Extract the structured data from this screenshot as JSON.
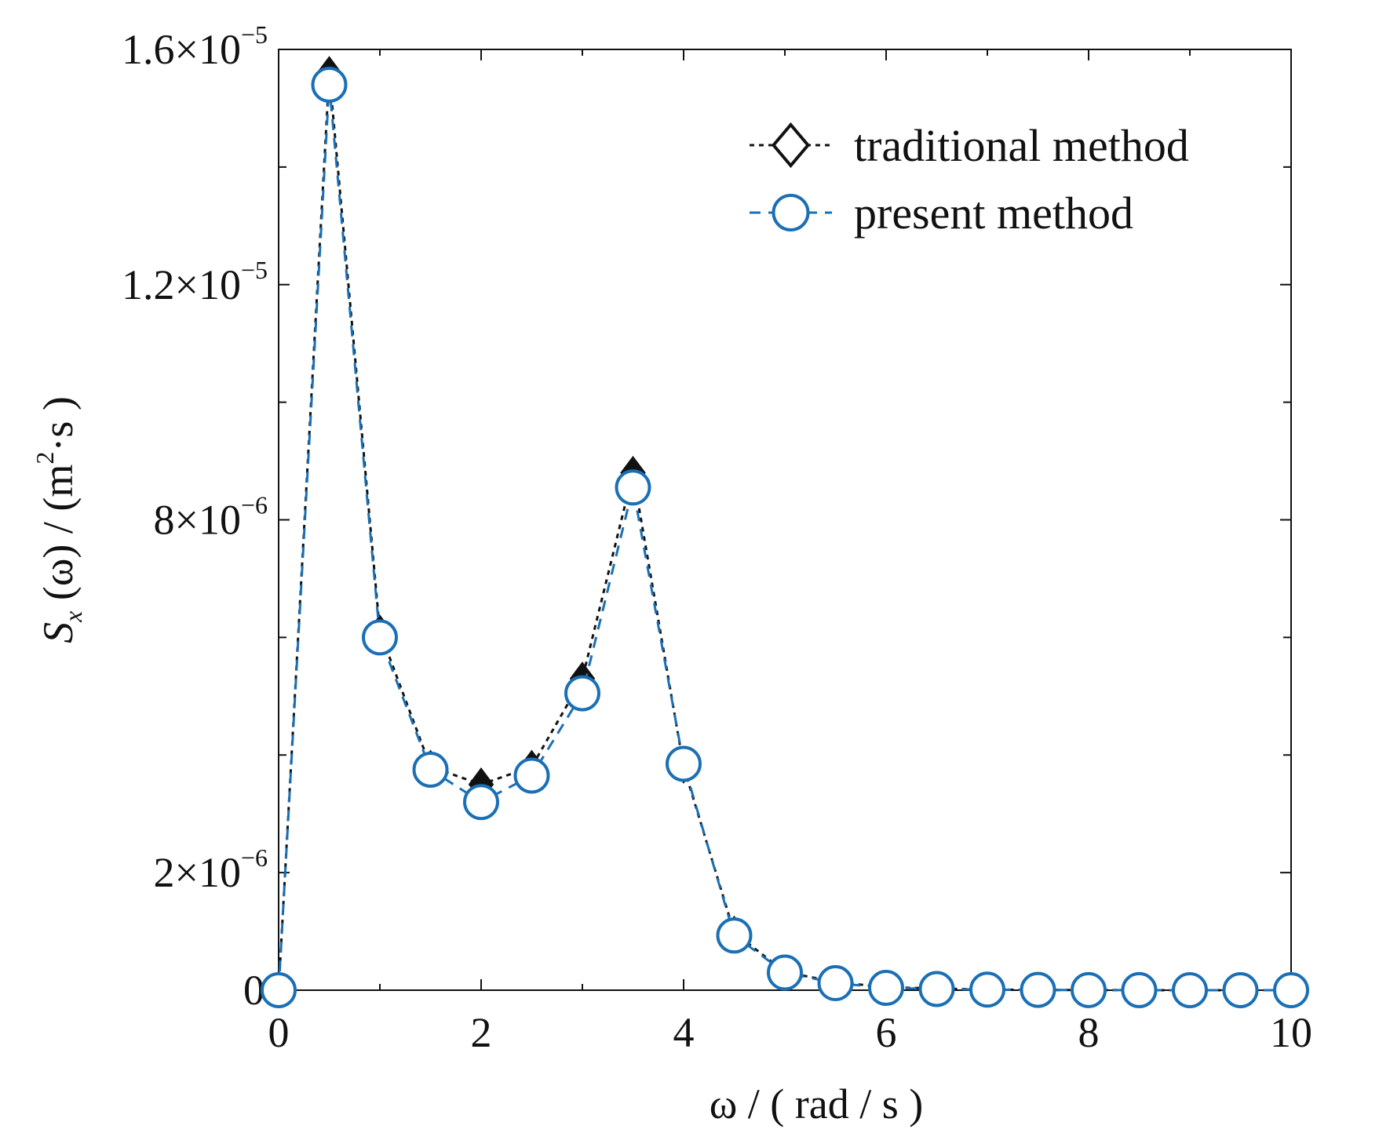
{
  "chart_data": {
    "type": "line",
    "xlabel": "ω / ( rad / s )",
    "ylabel_parts": {
      "symbol": "S",
      "subscript": "x",
      "arg": " (ω) / (m",
      "power": "2",
      "tail": "·s )"
    },
    "xlim": [
      0,
      10
    ],
    "ylim": [
      0,
      1.6e-05
    ],
    "x_ticks": [
      0,
      2,
      4,
      6,
      8,
      10
    ],
    "y_ticks": [
      {
        "value": 0,
        "mantissa": "0",
        "exponent": ""
      },
      {
        "value": 2e-06,
        "mantissa": "2×10",
        "exponent": "−6"
      },
      {
        "value": 8e-06,
        "mantissa": "8×10",
        "exponent": "−6"
      },
      {
        "value": 1.2e-05,
        "mantissa": "1.2×10",
        "exponent": "−5"
      },
      {
        "value": 1.6e-05,
        "mantissa": "1.6×10",
        "exponent": "−5"
      }
    ],
    "y_minor_ticks": [
      4e-06,
      6e-06,
      1e-05,
      1.4e-05
    ],
    "x_minor_ticks": [
      1,
      3,
      5,
      7,
      9
    ],
    "legend_position": "top-right",
    "x": [
      0,
      0.5,
      1,
      1.5,
      2,
      2.5,
      3,
      3.5,
      4,
      4.5,
      5,
      5.5,
      6,
      6.5,
      7,
      7.5,
      8,
      8.5,
      9,
      9.5,
      10
    ],
    "series": [
      {
        "name": "traditional method",
        "marker": "diamond",
        "color": "#111111",
        "dash": "6,6",
        "values": [
          0,
          1.56e-05,
          6.1e-06,
          3.8e-06,
          3.5e-06,
          3.8e-06,
          5.3e-06,
          8.8e-06,
          3.8e-06,
          9.8e-07,
          3.1e-07,
          1.4e-07,
          5e-08,
          3e-08,
          1e-08,
          5e-09,
          2e-09,
          1e-09,
          5e-10,
          2e-10,
          1e-10
        ]
      },
      {
        "name": "present method",
        "marker": "circle",
        "color": "#1a6fb5",
        "dash": "14,10",
        "values": [
          0,
          1.54e-05,
          6e-06,
          3.75e-06,
          3.2e-06,
          3.65e-06,
          5.05e-06,
          8.55e-06,
          3.85e-06,
          9.3e-07,
          3e-07,
          1.2e-07,
          4e-08,
          2e-08,
          1e-08,
          5e-09,
          2e-09,
          1e-09,
          5e-10,
          2e-10,
          1e-10
        ]
      }
    ]
  }
}
